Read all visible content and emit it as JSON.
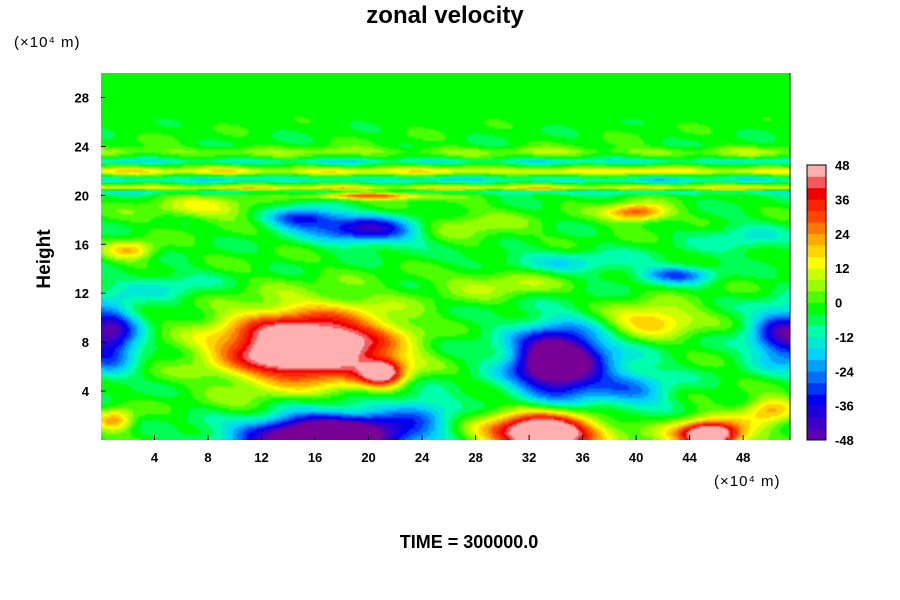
{
  "chart_data": {
    "type": "heatmap",
    "title": "zonal velocity",
    "ylabel": "Height",
    "xlabel": "",
    "x_unit": "(×10⁴ m)",
    "y_unit": "(×10⁴ m)",
    "footer": "TIME = 300000.0",
    "xlim": [
      0,
      51.5
    ],
    "ylim": [
      0,
      30
    ],
    "x_ticks": [
      4,
      8,
      12,
      16,
      20,
      24,
      28,
      32,
      36,
      40,
      44,
      48
    ],
    "y_ticks": [
      4,
      8,
      12,
      16,
      20,
      24,
      28
    ],
    "colorbar": {
      "min": -48,
      "max": 48,
      "step": 4,
      "ticks": [
        48,
        36,
        24,
        12,
        0,
        -12,
        -24,
        -36,
        -48
      ]
    },
    "background_value": 0,
    "features": [
      {
        "x": 15,
        "y": 7.5,
        "rx": 6,
        "ry": 2.6,
        "value": 48
      },
      {
        "x": 21,
        "y": 5.5,
        "rx": 1.8,
        "ry": 1.2,
        "value": 46
      },
      {
        "x": 16,
        "y": 7.8,
        "rx": 8,
        "ry": 3.8,
        "value": 32
      },
      {
        "x": 33,
        "y": 0.6,
        "rx": 3.8,
        "ry": 1.5,
        "value": 48
      },
      {
        "x": 33,
        "y": 0.8,
        "rx": 6,
        "ry": 2.2,
        "value": 28
      },
      {
        "x": 45.5,
        "y": 0.4,
        "rx": 2.2,
        "ry": 1,
        "value": 48
      },
      {
        "x": 45.5,
        "y": 0.6,
        "rx": 3.8,
        "ry": 1.6,
        "value": 26
      },
      {
        "x": 34,
        "y": 6.5,
        "rx": 3,
        "ry": 2.4,
        "value": -48
      },
      {
        "x": 34.5,
        "y": 6.2,
        "rx": 5,
        "ry": 4,
        "value": -30
      },
      {
        "x": 17,
        "y": 0.3,
        "rx": 6,
        "ry": 1.6,
        "value": -48
      },
      {
        "x": 17,
        "y": 0.6,
        "rx": 8.5,
        "ry": 2.5,
        "value": -30
      },
      {
        "x": 0.5,
        "y": 8.5,
        "rx": 2.5,
        "ry": 3,
        "value": -44
      },
      {
        "x": 51.5,
        "y": 8.5,
        "rx": 3.2,
        "ry": 2.6,
        "value": -44
      },
      {
        "x": 20,
        "y": 17.2,
        "rx": 4.5,
        "ry": 1.3,
        "value": -38
      },
      {
        "x": 15,
        "y": 18.2,
        "rx": 3,
        "ry": 1,
        "value": -32
      },
      {
        "x": 20,
        "y": 20,
        "rx": 5,
        "ry": 0.35,
        "value": 34
      },
      {
        "x": 40,
        "y": 18.6,
        "rx": 2.6,
        "ry": 0.8,
        "value": 34
      },
      {
        "x": 41,
        "y": 9.8,
        "rx": 4,
        "ry": 1.5,
        "value": 24
      },
      {
        "x": 2.2,
        "y": 15.5,
        "rx": 2,
        "ry": 0.9,
        "value": 22
      },
      {
        "x": 1,
        "y": 1.6,
        "rx": 1.6,
        "ry": 1,
        "value": 26
      },
      {
        "x": 50,
        "y": 2.5,
        "rx": 2.2,
        "ry": 1.2,
        "value": 24
      },
      {
        "x": 34,
        "y": 14.5,
        "rx": 8,
        "ry": 1.2,
        "value": -12
      },
      {
        "x": 43,
        "y": 13.5,
        "rx": 3,
        "ry": 0.8,
        "value": -24
      },
      {
        "x": 8,
        "y": 19,
        "rx": 5,
        "ry": 1.1,
        "value": 14
      },
      {
        "x": 27,
        "y": 17.5,
        "rx": 5,
        "ry": 1.5,
        "value": 10
      },
      {
        "x": 30,
        "y": 13,
        "rx": 5,
        "ry": 1.6,
        "value": 12
      },
      {
        "x": 26,
        "y": 8,
        "rx": 4,
        "ry": 2.5,
        "value": -4
      },
      {
        "x": 24,
        "y": 2.5,
        "rx": 3,
        "ry": 2,
        "value": -14
      },
      {
        "x": 40,
        "y": 4,
        "rx": 3.5,
        "ry": 2.2,
        "value": -16
      },
      {
        "x": 11,
        "y": 2.5,
        "rx": 4,
        "ry": 1.5,
        "value": 8
      },
      {
        "x": 5,
        "y": 12.5,
        "rx": 4,
        "ry": 1.5,
        "value": -10
      },
      {
        "x": 48,
        "y": 16.5,
        "rx": 4,
        "ry": 1.5,
        "value": -10
      }
    ],
    "bands": [
      {
        "y": 22.8,
        "half_width": 0.22,
        "value": -12
      },
      {
        "y": 22.0,
        "half_width": 0.3,
        "value": 18
      },
      {
        "y": 21.3,
        "half_width": 0.22,
        "value": -14
      },
      {
        "y": 20.65,
        "half_width": 0.18,
        "value": 20
      },
      {
        "y": 20.25,
        "half_width": 0.2,
        "value": -10
      },
      {
        "y": 23.6,
        "half_width": 0.35,
        "value": 8
      }
    ]
  }
}
